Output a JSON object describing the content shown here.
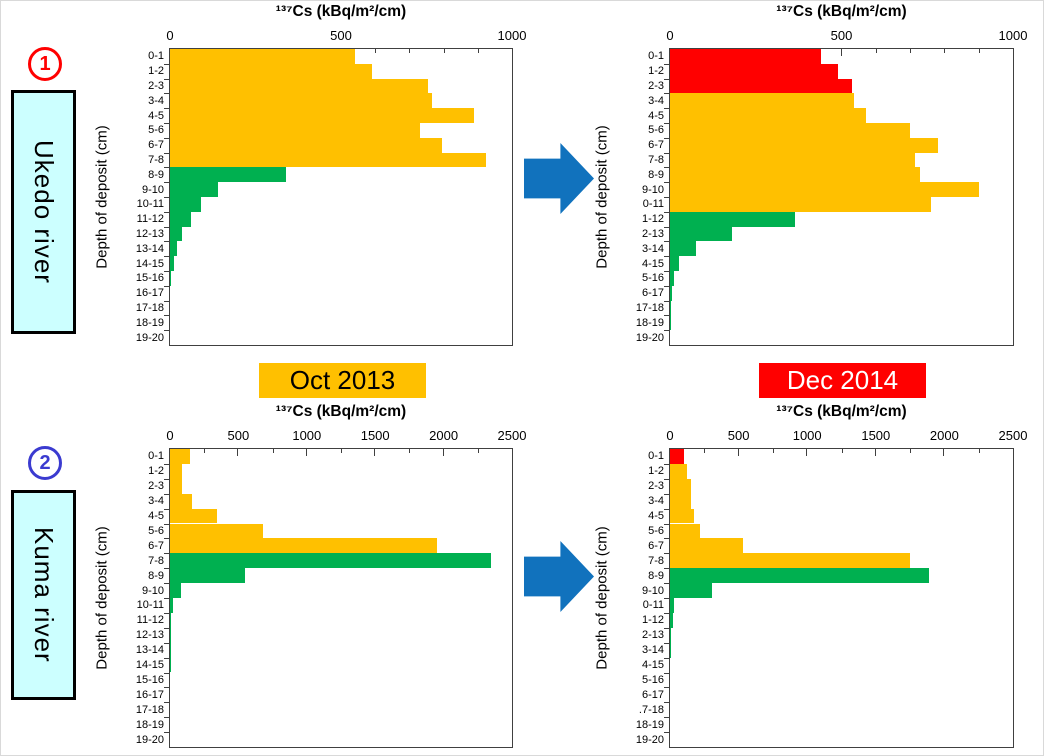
{
  "page": {
    "sections": [
      {
        "number": "1",
        "label": "Ukedo river",
        "accent": "#ff0000"
      },
      {
        "number": "2",
        "label": "Kuma river",
        "accent": "#3b3bd0"
      }
    ],
    "legend": [
      {
        "label": "Oct 2013",
        "bg": "#ffc000",
        "fg": "#000000"
      },
      {
        "label": "Dec 2014",
        "bg": "#ff0000",
        "fg": "#ffffff"
      }
    ],
    "box_bg": "#ccffff",
    "arrow_color": "#1172bd"
  },
  "palette": {
    "o": "#ffc000",
    "g": "#00b050",
    "r": "#ff0000"
  },
  "chart_data": [
    {
      "type": "bar",
      "orientation": "horizontal",
      "river": "Ukedo river",
      "date": "Oct 2013",
      "title": "¹³⁷Cs (kBq/m²/cm)",
      "ylabel": "Depth of deposit (cm)",
      "xlim": [
        0,
        1000
      ],
      "xticks": [
        0,
        500,
        1000
      ],
      "minor_step": 100,
      "categories": [
        "0-1",
        "1-2",
        "2-3",
        "3-4",
        "4-5",
        "5-6",
        "6-7",
        "7-8",
        "8-9",
        "9-10",
        "10-11",
        "11-12",
        "12-13",
        "13-14",
        "14-15",
        "15-16",
        "16-17",
        "17-18",
        "18-19",
        "19-20"
      ],
      "values": [
        540,
        590,
        755,
        765,
        890,
        730,
        795,
        925,
        340,
        140,
        90,
        60,
        35,
        20,
        12,
        4,
        0,
        0,
        0,
        0
      ],
      "bar_colors": [
        "o",
        "o",
        "o",
        "o",
        "o",
        "o",
        "o",
        "o",
        "g",
        "g",
        "g",
        "g",
        "g",
        "g",
        "g",
        "g",
        "g",
        "g",
        "g",
        "g"
      ]
    },
    {
      "type": "bar",
      "orientation": "horizontal",
      "river": "Ukedo river",
      "date": "Dec 2014",
      "title": "¹³⁷Cs (kBq/m²/cm)",
      "ylabel": "Depth of deposit (cm)",
      "xlim": [
        0,
        1000
      ],
      "xticks": [
        0,
        500,
        1000
      ],
      "minor_step": 100,
      "categories": [
        "0-1",
        "1-2",
        "2-3",
        "3-4",
        "4-5",
        "5-6",
        "6-7",
        "7-8",
        "8-9",
        "9-10",
        "0-11",
        "1-12",
        "2-13",
        "3-14",
        "4-15",
        "5-16",
        "6-17",
        "17-18",
        "18-19",
        "19-20"
      ],
      "values": [
        440,
        490,
        530,
        535,
        570,
        700,
        780,
        715,
        730,
        900,
        760,
        365,
        180,
        75,
        27,
        13,
        7,
        3,
        3,
        0
      ],
      "bar_colors": [
        "r",
        "r",
        "r",
        "o",
        "o",
        "o",
        "o",
        "o",
        "o",
        "o",
        "o",
        "g",
        "g",
        "g",
        "g",
        "g",
        "g",
        "g",
        "g",
        "g"
      ]
    },
    {
      "type": "bar",
      "orientation": "horizontal",
      "river": "Kuma river",
      "date": "Oct 2013",
      "title": "¹³⁷Cs (kBq/m²/cm)",
      "ylabel": "Depth of deposit (cm)",
      "xlim": [
        0,
        2500
      ],
      "xticks": [
        0,
        500,
        1000,
        1500,
        2000,
        2500
      ],
      "minor_step": 250,
      "categories": [
        "0-1",
        "1-2",
        "2-3",
        "3-4",
        "4-5",
        "5-6",
        "6-7",
        "7-8",
        "8-9",
        "9-10",
        "10-11",
        "11-12",
        "12-13",
        "13-14",
        "14-15",
        "15-16",
        "16-17",
        "17-18",
        "18-19",
        "19-20"
      ],
      "values": [
        145,
        90,
        90,
        160,
        345,
        680,
        1950,
        2350,
        545,
        80,
        22,
        10,
        7,
        7,
        5,
        0,
        0,
        0,
        0,
        0
      ],
      "bar_colors": [
        "o",
        "o",
        "o",
        "o",
        "o",
        "o",
        "o",
        "g",
        "g",
        "g",
        "g",
        "g",
        "g",
        "g",
        "g",
        "g",
        "g",
        "g",
        "g",
        "g"
      ]
    },
    {
      "type": "bar",
      "orientation": "horizontal",
      "river": "Kuma river",
      "date": "Dec 2014",
      "title": "¹³⁷Cs (kBq/m²/cm)",
      "ylabel": "Depth of deposit (cm)",
      "xlim": [
        0,
        2500
      ],
      "xticks": [
        0,
        500,
        1000,
        1500,
        2000,
        2500
      ],
      "minor_step": 250,
      "categories": [
        "0-1",
        "1-2",
        "2-3",
        "3-4",
        "4-5",
        "5-6",
        "6-7",
        "7-8",
        "8-9",
        "9-10",
        "0-11",
        "1-12",
        "2-13",
        "3-14",
        "4-15",
        "5-16",
        "6-17",
        ".7-18",
        "18-19",
        "19-20"
      ],
      "values": [
        105,
        125,
        150,
        150,
        175,
        220,
        530,
        1750,
        1890,
        305,
        30,
        25,
        7,
        5,
        0,
        0,
        0,
        0,
        0,
        0
      ],
      "bar_colors": [
        "r",
        "o",
        "o",
        "o",
        "o",
        "o",
        "o",
        "o",
        "g",
        "g",
        "g",
        "g",
        "g",
        "g",
        "g",
        "g",
        "g",
        "g",
        "g",
        "g"
      ]
    }
  ]
}
